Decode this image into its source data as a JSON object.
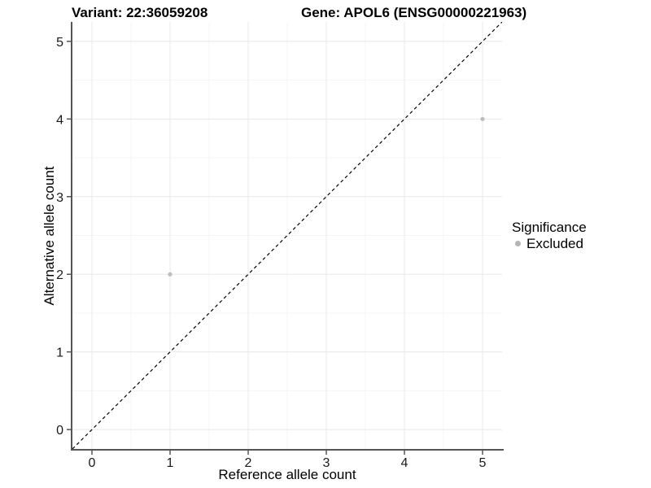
{
  "chart_data": {
    "type": "scatter",
    "title_left": "Variant: 22:36059208",
    "title_right": "Gene: APOL6 (ENSG00000221963)",
    "xlabel": "Reference allele count",
    "ylabel": "Alternative allele count",
    "xlim": [
      -0.25,
      5.25
    ],
    "ylim": [
      -0.25,
      5.25
    ],
    "x_ticks": [
      0,
      1,
      2,
      3,
      4,
      5
    ],
    "y_ticks": [
      0,
      1,
      2,
      3,
      4,
      5
    ],
    "grid": "major and minor gridlines on white background",
    "identity_line": {
      "equation": "y = x",
      "style": "dashed",
      "color": "#000000"
    },
    "series": [
      {
        "name": "Excluded",
        "color": "#bdbdbd",
        "points": [
          {
            "x": 1,
            "y": 2
          },
          {
            "x": 5,
            "y": 4
          }
        ]
      }
    ],
    "legend": {
      "title": "Significance",
      "position": "right",
      "items": [
        {
          "label": "Excluded",
          "color": "#b5b5b5"
        }
      ]
    }
  },
  "colors": {
    "background": "#ffffff",
    "axis_line": "#555555",
    "tick_mark": "#555555",
    "tick_label": "#1a1a1a",
    "grid_major": "#e8e8e8",
    "grid_minor": "#f4f4f4",
    "point": "#bdbdbd",
    "dashed_line": "#000000",
    "text": "#000000"
  }
}
